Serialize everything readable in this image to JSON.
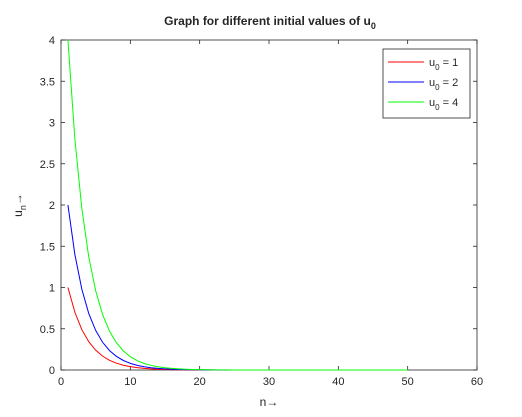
{
  "chart_data": {
    "type": "line",
    "title": "Graph for different initial values of u",
    "title_subscript": "0",
    "xlabel": "n→",
    "ylabel": "u",
    "ylabel_subscript": "n",
    "ylabel_suffix": "→",
    "xlim": [
      0,
      60
    ],
    "ylim": [
      0,
      4
    ],
    "xticks": [
      "0",
      "10",
      "20",
      "30",
      "40",
      "50",
      "60"
    ],
    "yticks": [
      "0",
      "0.5",
      "1",
      "1.5",
      "2",
      "2.5",
      "3",
      "3.5",
      "4"
    ],
    "grid": false,
    "legend_position": "top-right",
    "decay_ratio": 0.7,
    "x": [
      1,
      50
    ],
    "series": [
      {
        "name": "u",
        "name_subscript": "0",
        "name_suffix": " = 1",
        "start": 1,
        "color": "#ff0000"
      },
      {
        "name": "u",
        "name_subscript": "0",
        "name_suffix": " = 2",
        "start": 2,
        "color": "#0000ff"
      },
      {
        "name": "u",
        "name_subscript": "0",
        "name_suffix": " = 4",
        "start": 4,
        "color": "#00ff00"
      }
    ]
  }
}
